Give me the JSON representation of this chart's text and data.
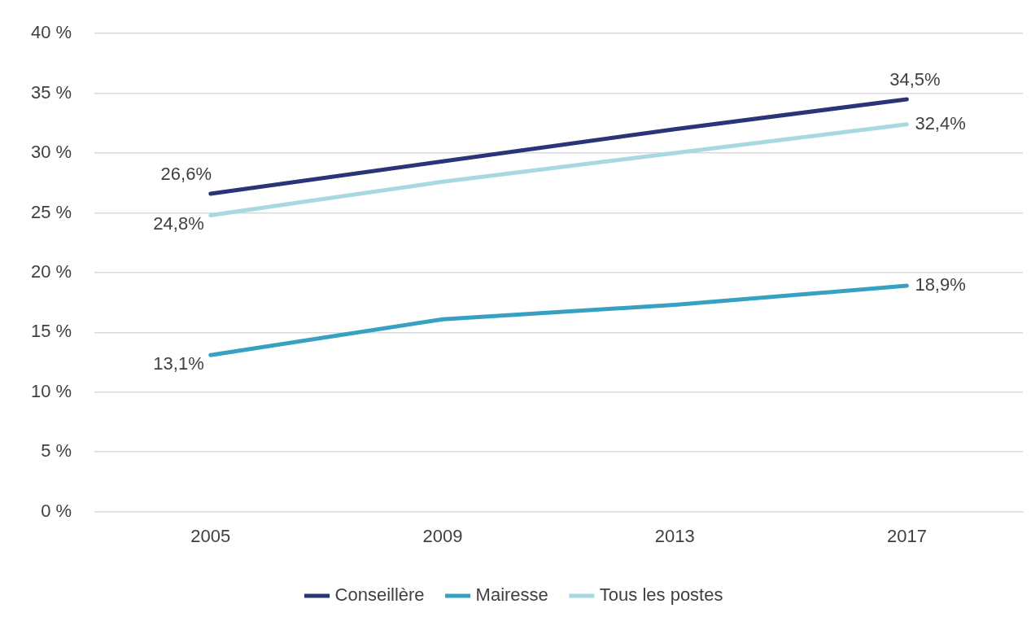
{
  "chart_data": {
    "type": "line",
    "categories": [
      "2005",
      "2009",
      "2013",
      "2017"
    ],
    "series": [
      {
        "name": "Conseillère",
        "color": "#2b3476",
        "values": [
          26.6,
          29.3,
          32.0,
          34.5
        ],
        "value_labels": [
          "26,6%",
          null,
          null,
          "34,5%"
        ]
      },
      {
        "name": "Mairesse",
        "color": "#37a1c2",
        "values": [
          13.1,
          16.1,
          17.3,
          18.9
        ],
        "value_labels": [
          "13,1%",
          null,
          null,
          "18,9%"
        ]
      },
      {
        "name": "Tous les postes",
        "color": "#a9d9e0",
        "values": [
          24.8,
          27.6,
          30.0,
          32.4
        ],
        "value_labels": [
          "24,8%",
          null,
          null,
          "32,4%"
        ]
      }
    ],
    "ylim": [
      0,
      40
    ],
    "yticks": [
      {
        "value": 0,
        "label": "0 %"
      },
      {
        "value": 5,
        "label": "5 %"
      },
      {
        "value": 10,
        "label": "10 %"
      },
      {
        "value": 15,
        "label": "15 %"
      },
      {
        "value": 20,
        "label": "20 %"
      },
      {
        "value": 25,
        "label": "25 %"
      },
      {
        "value": 30,
        "label": "30 %"
      },
      {
        "value": 35,
        "label": "35 %"
      },
      {
        "value": 40,
        "label": "40 %"
      }
    ],
    "grid": "y",
    "legend": "bottom",
    "marker": "none",
    "line_style": "solid"
  }
}
